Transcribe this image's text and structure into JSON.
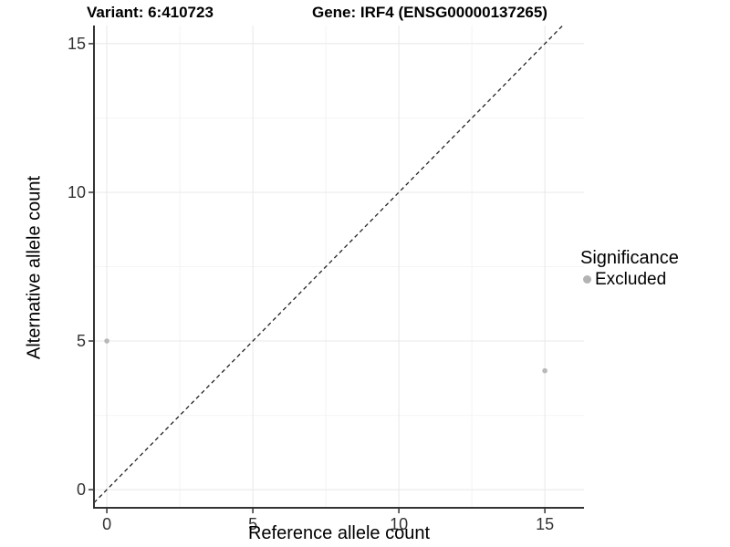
{
  "titles": {
    "variant": "Variant: 6:410723",
    "gene": "Gene: IRF4 (ENSG00000137265)"
  },
  "axes": {
    "x": {
      "label": "Reference allele count",
      "tick_labels": [
        "0",
        "5",
        "10",
        "15"
      ]
    },
    "y": {
      "label": "Alternative allele count",
      "tick_labels": [
        "0",
        "5",
        "10",
        "15"
      ]
    }
  },
  "legend": {
    "title": "Significance",
    "items": [
      {
        "label": "Excluded",
        "color": "#b3b3b3"
      }
    ]
  },
  "colors": {
    "point": "#b8b8b8",
    "grid_major": "#e8e8e8",
    "grid_minor": "#f4f4f4",
    "axis_line": "#333333",
    "tick_mark": "#333333",
    "dashed_line": "#222222",
    "background": "#ffffff"
  },
  "chart_data": {
    "type": "scatter",
    "title": "Variant: 6:410723 — Gene: IRF4 (ENSG00000137265)",
    "xlabel": "Reference allele count",
    "ylabel": "Alternative allele count",
    "xticks": [
      0,
      5,
      10,
      15
    ],
    "yticks": [
      0,
      5,
      10,
      15
    ],
    "xlim": [
      -0.44,
      16.34
    ],
    "ylim": [
      -0.61,
      15.61
    ],
    "grid": true,
    "legend_position": "right",
    "series": [
      {
        "name": "Excluded",
        "color": "#b8b8b8",
        "points": [
          {
            "x": 0,
            "y": 5
          },
          {
            "x": 15,
            "y": 4
          }
        ]
      }
    ],
    "reference_line": {
      "slope": 1,
      "intercept": 0,
      "style": "dashed",
      "color": "#222222"
    }
  }
}
